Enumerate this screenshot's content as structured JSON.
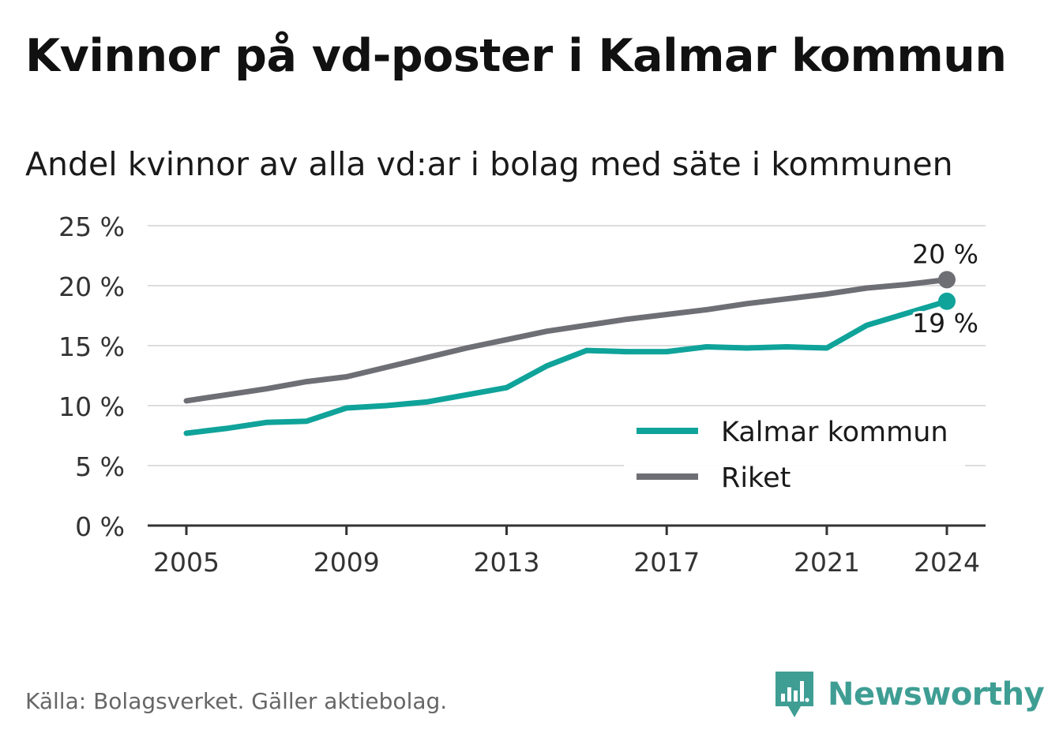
{
  "title": "Kvinnor på vd-poster i Kalmar kommun",
  "subtitle": "Andel kvinnor av alla vd:ar i bolag med säte i kommunen",
  "source": "Källa: Bolagsverket. Gäller aktiebolag.",
  "brand": "Newsworthy",
  "colors": {
    "kalmar": "#0fa39a",
    "riket": "#6e6e75",
    "grid": "#dddddd",
    "axis": "#333333",
    "brand": "#3f9e94"
  },
  "chart_data": {
    "type": "line",
    "x": [
      2005,
      2006,
      2007,
      2008,
      2009,
      2010,
      2011,
      2012,
      2013,
      2014,
      2015,
      2016,
      2017,
      2018,
      2019,
      2020,
      2021,
      2022,
      2023,
      2024
    ],
    "xlim": [
      2005,
      2024
    ],
    "x_ticks": [
      2005,
      2009,
      2013,
      2017,
      2021,
      2024
    ],
    "x_tick_labels": [
      "2005",
      "2009",
      "2013",
      "2017",
      "2021",
      "2024"
    ],
    "ylim": [
      0,
      25
    ],
    "y_ticks": [
      0,
      5,
      10,
      15,
      20,
      25
    ],
    "y_tick_labels": [
      "0 %",
      "5 %",
      "10 %",
      "15 %",
      "20 %",
      "25 %"
    ],
    "grid": true,
    "legend_position": "bottom-right",
    "series": [
      {
        "name": "Kalmar kommun",
        "color": "#0fa39a",
        "values": [
          7.7,
          8.1,
          8.6,
          8.7,
          9.8,
          10.0,
          10.3,
          10.9,
          11.5,
          13.3,
          14.6,
          14.5,
          14.5,
          14.9,
          14.8,
          14.9,
          14.8,
          16.7,
          17.7,
          18.7
        ],
        "end_label": "19 %"
      },
      {
        "name": "Riket",
        "color": "#6e6e75",
        "values": [
          10.4,
          10.9,
          11.4,
          12.0,
          12.4,
          13.2,
          14.0,
          14.8,
          15.5,
          16.2,
          16.7,
          17.2,
          17.6,
          18.0,
          18.5,
          18.9,
          19.3,
          19.8,
          20.1,
          20.5
        ],
        "end_label": "20 %"
      }
    ]
  }
}
